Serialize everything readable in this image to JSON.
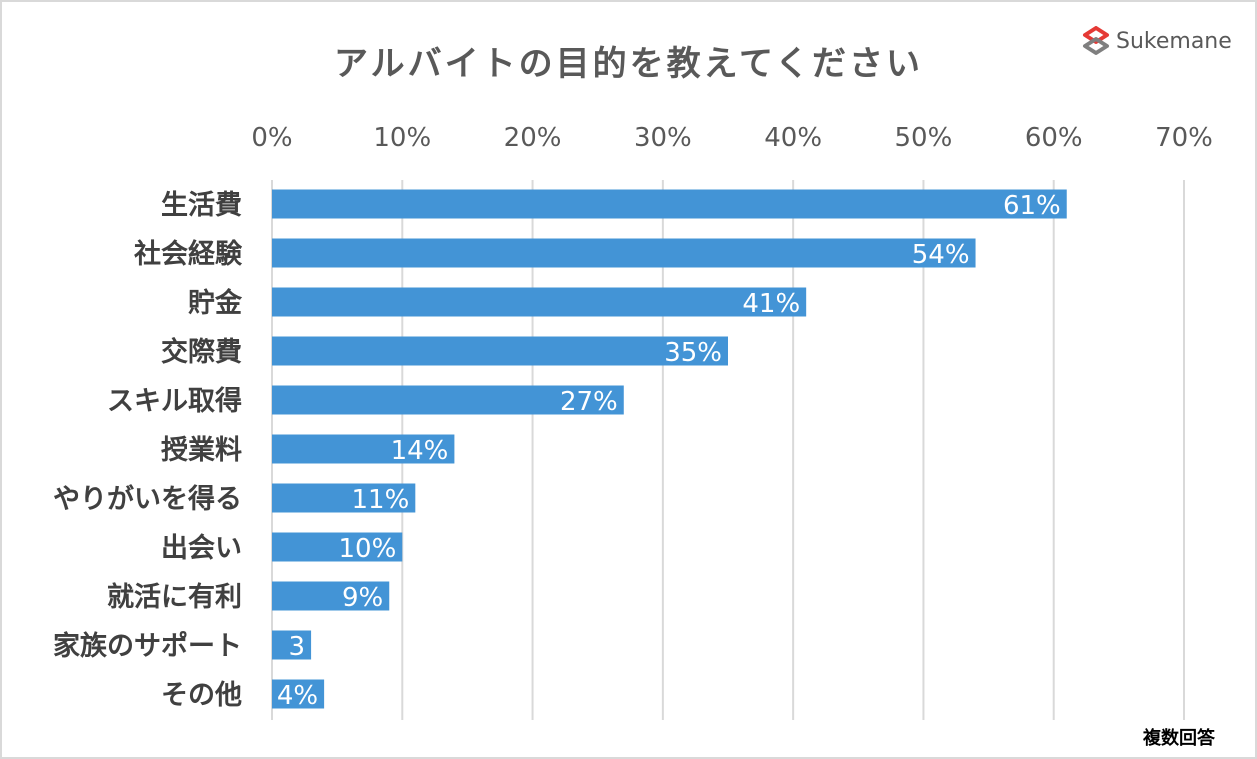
{
  "brand": {
    "name": "Sukemane",
    "logo_icon": "sukemane-logo-icon",
    "logo_colors": [
      "#e53935",
      "#7f7f7f"
    ]
  },
  "note": "複数回答",
  "chart_data": {
    "type": "bar",
    "orientation": "horizontal",
    "title": "アルバイトの目的を教えてください",
    "xlabel": "",
    "ylabel": "",
    "xlim": [
      0,
      70
    ],
    "x_ticks": [
      {
        "value": 0,
        "label": "0%"
      },
      {
        "value": 10,
        "label": "10%"
      },
      {
        "value": 20,
        "label": "20%"
      },
      {
        "value": 30,
        "label": "30%"
      },
      {
        "value": 40,
        "label": "40%"
      },
      {
        "value": 50,
        "label": "50%"
      },
      {
        "value": 60,
        "label": "60%"
      },
      {
        "value": 70,
        "label": "70%"
      }
    ],
    "categories": [
      "生活費",
      "社会経験",
      "貯金",
      "交際費",
      "スキル取得",
      "授業料",
      "やりがいを得る",
      "出会い",
      "就活に有利",
      "家族のサポート",
      "その他"
    ],
    "values": [
      61,
      54,
      41,
      35,
      27,
      14,
      11,
      10,
      9,
      3,
      4
    ],
    "data_labels": [
      "61%",
      "54%",
      "41%",
      "35%",
      "27%",
      "14%",
      "11%",
      "10%",
      "9%",
      "3",
      "4%"
    ],
    "bar_color": "#4394d6",
    "grid": true,
    "grid_color": "#d9d9d9",
    "legend": "none"
  }
}
